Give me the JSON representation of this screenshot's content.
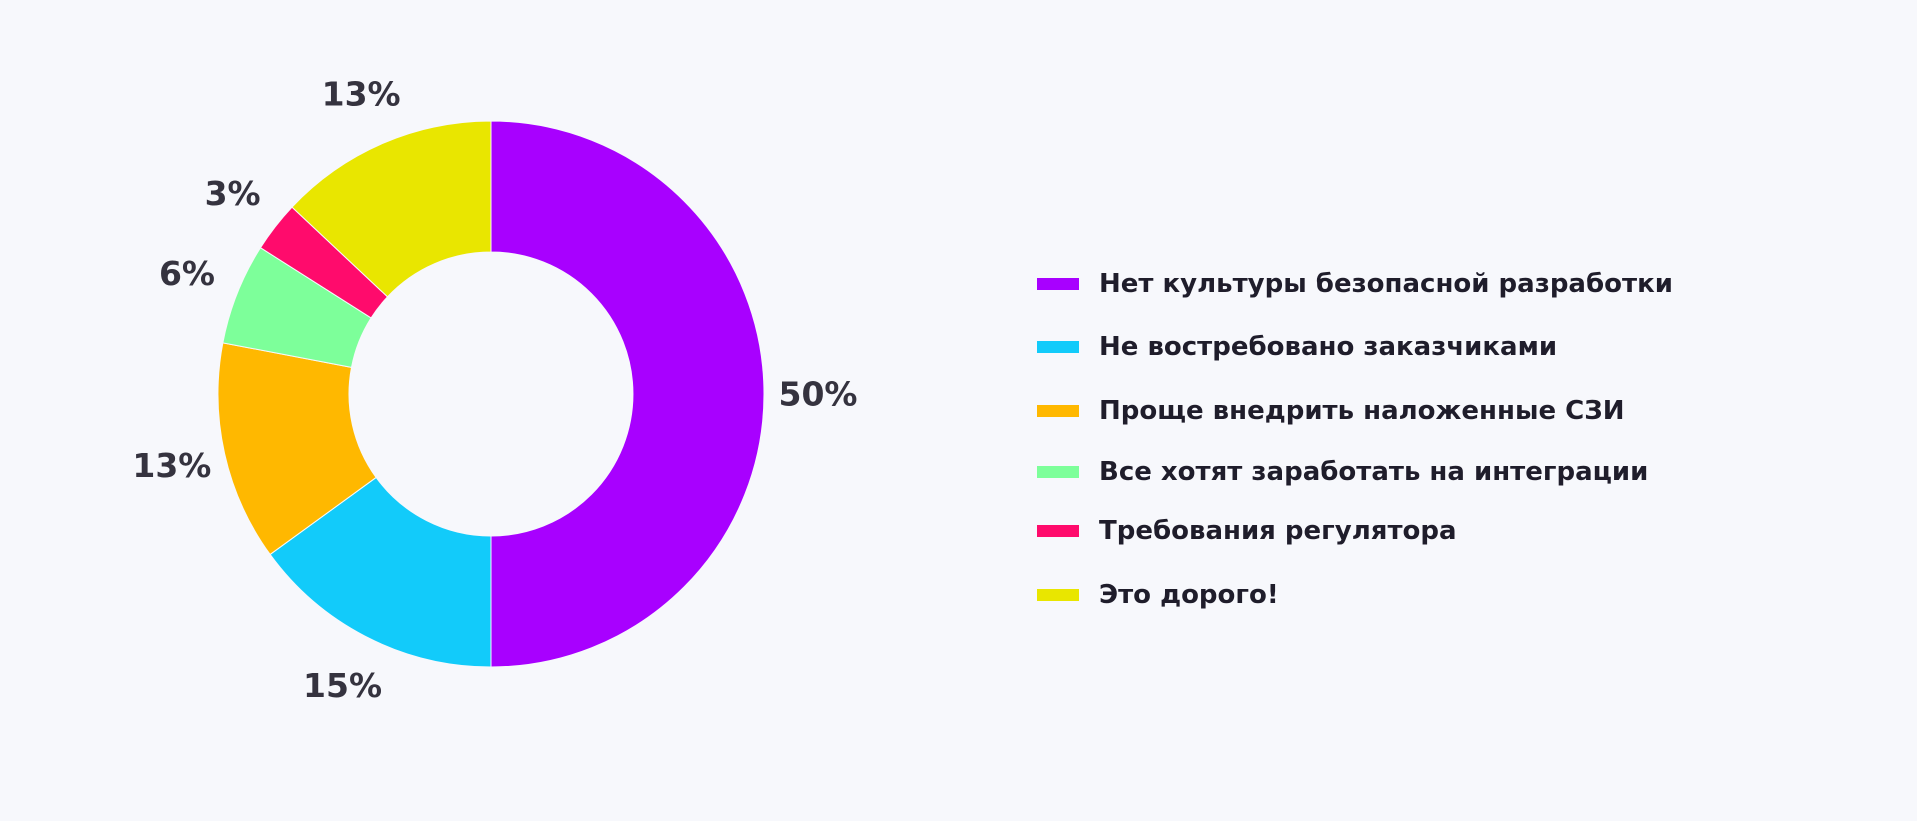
{
  "chart_data": {
    "type": "pie",
    "donut": true,
    "unit": "%",
    "slices": [
      {
        "name": "Нет культуры безопасной разработки",
        "value": 50,
        "label": "50%",
        "color": "#a800ff"
      },
      {
        "name": "Не востребовано заказчиками",
        "value": 15,
        "label": "15%",
        "color": "#12cbfa"
      },
      {
        "name": "Проще внедрить наложенные СЗИ",
        "value": 13,
        "label": "13%",
        "color": "#ffb800"
      },
      {
        "name": "Все хотят заработать на интеграции",
        "value": 6,
        "label": "6%",
        "color": "#7dff9a"
      },
      {
        "name": "Требования регулятора",
        "value": 3,
        "label": "3%",
        "color": "#ff0b6c"
      },
      {
        "name": "Это дорого!",
        "value": 13,
        "label": "13%",
        "color": "#e9e600"
      }
    ],
    "legend": {
      "position": "right"
    }
  }
}
